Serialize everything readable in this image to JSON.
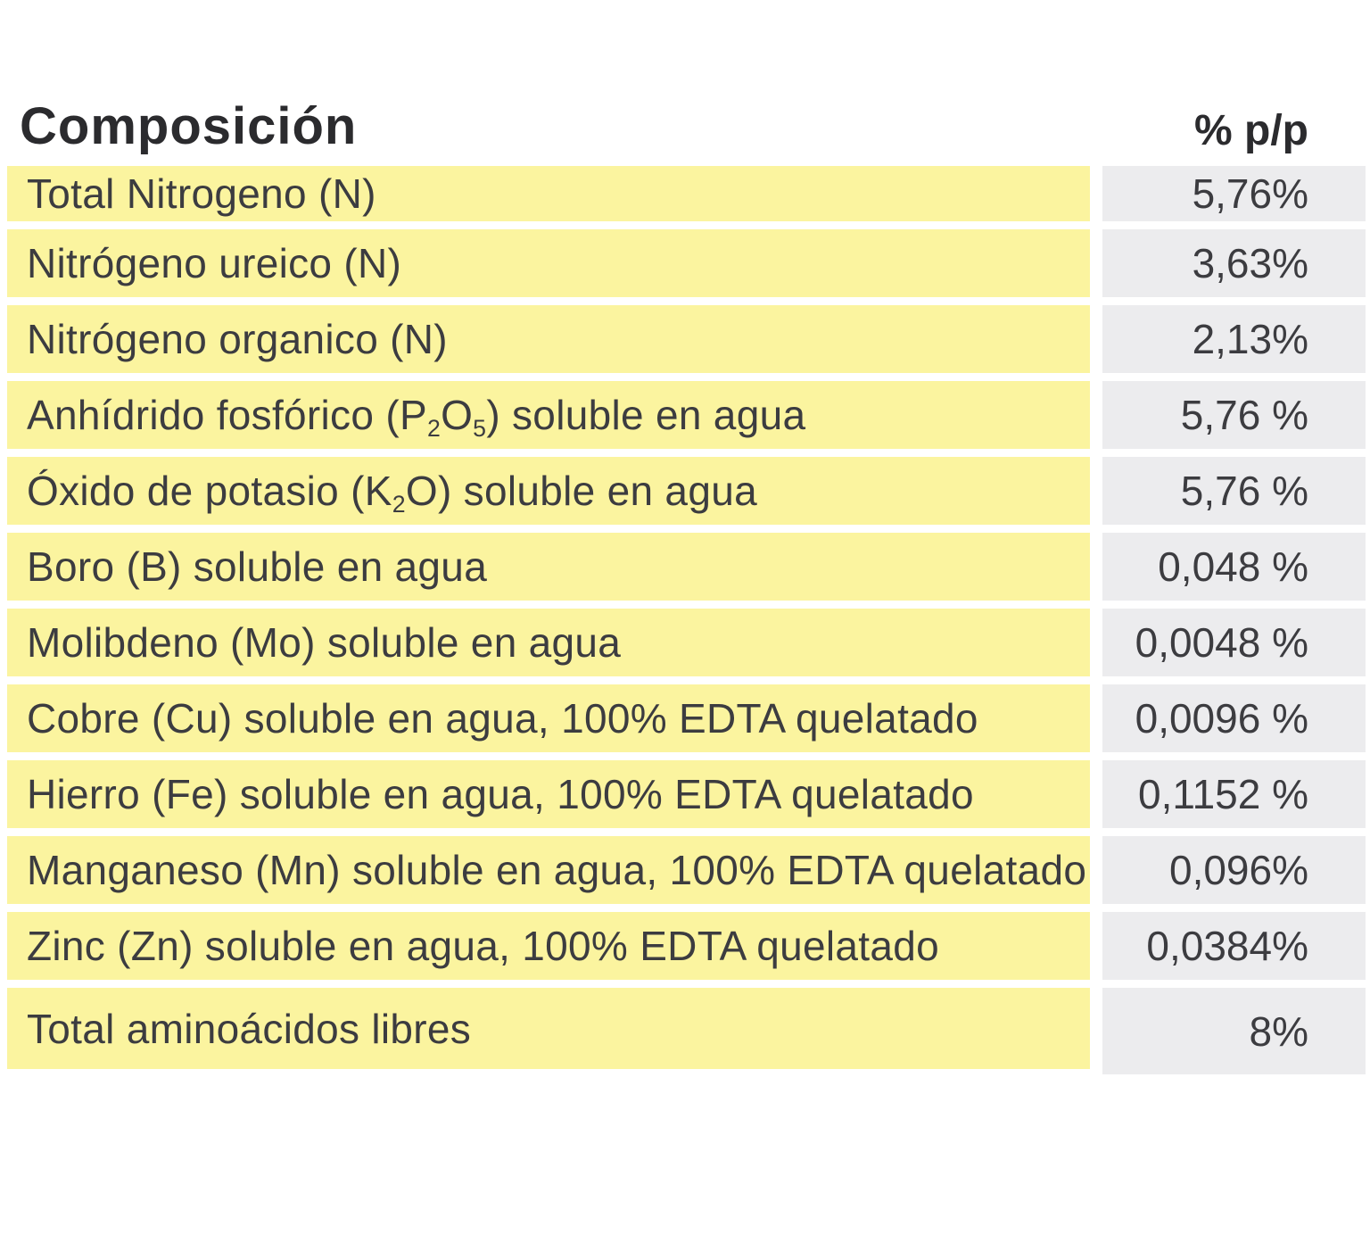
{
  "header": {
    "title": "Composición",
    "unit_label": "% p/p"
  },
  "colors": {
    "row_label_bg": "#fbf49f",
    "row_value_bg": "#ececee",
    "text": "#3c3c40",
    "heading_text": "#2b2b2e"
  },
  "table": {
    "rows": [
      {
        "label_segments": [
          {
            "t": "Total Nitrogeno (N)"
          }
        ],
        "value": "5,76%"
      },
      {
        "label_segments": [
          {
            "t": "Nitrógeno ureico (N)"
          }
        ],
        "value": "3,63%"
      },
      {
        "label_segments": [
          {
            "t": "Nitrógeno organico (N)"
          }
        ],
        "value": "2,13%"
      },
      {
        "label_segments": [
          {
            "t": "Anhídrido fosfórico (P"
          },
          {
            "sub": "2"
          },
          {
            "t": "O"
          },
          {
            "sub": "5"
          },
          {
            "t": ") soluble en agua"
          }
        ],
        "value": "5,76 %"
      },
      {
        "label_segments": [
          {
            "t": "Óxido de potasio (K"
          },
          {
            "sub": "2"
          },
          {
            "t": "O) soluble en agua"
          }
        ],
        "value": "5,76 %"
      },
      {
        "label_segments": [
          {
            "t": "Boro (B) soluble en agua"
          }
        ],
        "value": "0,048 %"
      },
      {
        "label_segments": [
          {
            "t": "Molibdeno (Mo) soluble en agua"
          }
        ],
        "value": "0,0048 %"
      },
      {
        "label_segments": [
          {
            "t": "Cobre (Cu) soluble en agua, 100% EDTA quelatado"
          }
        ],
        "value": "0,0096 %"
      },
      {
        "label_segments": [
          {
            "t": "Hierro (Fe) soluble en agua, 100% EDTA quelatado"
          }
        ],
        "value": "0,1152 %"
      },
      {
        "label_segments": [
          {
            "t": "Manganeso (Mn) soluble en agua, 100% EDTA quelatado"
          }
        ],
        "value": "0,096%"
      },
      {
        "label_segments": [
          {
            "t": "Zinc (Zn) soluble en agua, 100% EDTA quelatado"
          }
        ],
        "value": "0,0384%"
      },
      {
        "label_segments": [
          {
            "t": "Total aminoácidos libres"
          }
        ],
        "value": "8%"
      }
    ]
  }
}
